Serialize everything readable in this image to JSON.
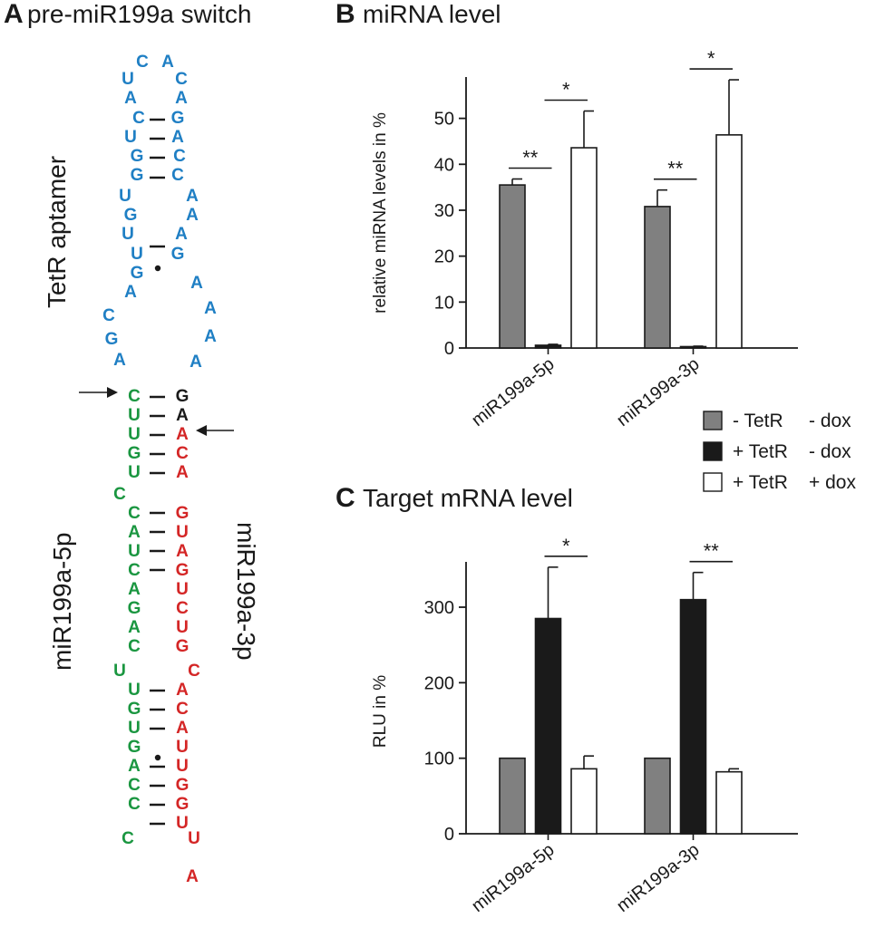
{
  "panel_a": {
    "letter": "A",
    "title": "pre-miR199a switch",
    "label_aptamer": "TetR aptamer",
    "label_5p": "miR199a-5p",
    "label_3p": "miR199a-3p",
    "colors": {
      "aptamer": "#1f7fc4",
      "strand_5p": "#1a9640",
      "strand_3p": "#d42626",
      "junction": "#1a1a1a"
    },
    "nucleotides": [
      {
        "c": "C",
        "col": "aptamer"
      },
      {
        "c": "A",
        "col": "aptamer"
      },
      {
        "c": "U",
        "col": "aptamer"
      },
      {
        "c": "C",
        "col": "aptamer"
      },
      {
        "c": "A",
        "col": "aptamer"
      },
      {
        "c": "A",
        "col": "aptamer"
      },
      {
        "c": "C",
        "col": "aptamer"
      },
      {
        "c": "G",
        "col": "aptamer"
      },
      {
        "c": "U",
        "col": "aptamer"
      },
      {
        "c": "A",
        "col": "aptamer"
      },
      {
        "c": "G",
        "col": "aptamer"
      },
      {
        "c": "C",
        "col": "aptamer"
      },
      {
        "c": "G",
        "col": "aptamer"
      },
      {
        "c": "C",
        "col": "aptamer"
      },
      {
        "c": "U",
        "col": "aptamer"
      },
      {
        "c": "A",
        "col": "aptamer"
      },
      {
        "c": "G",
        "col": "aptamer"
      },
      {
        "c": "A",
        "col": "aptamer"
      },
      {
        "c": "U",
        "col": "aptamer"
      },
      {
        "c": "A",
        "col": "aptamer"
      },
      {
        "c": "U",
        "col": "aptamer"
      },
      {
        "c": "G",
        "col": "aptamer"
      },
      {
        "c": "G",
        "col": "aptamer"
      },
      {
        "c": "A",
        "col": "aptamer"
      },
      {
        "c": "A",
        "col": "aptamer"
      },
      {
        "c": "A",
        "col": "aptamer"
      },
      {
        "c": "C",
        "col": "aptamer"
      },
      {
        "c": "A",
        "col": "aptamer"
      },
      {
        "c": "G",
        "col": "aptamer"
      },
      {
        "c": "A",
        "col": "aptamer"
      },
      {
        "c": "A",
        "col": "aptamer"
      },
      {
        "c": "C",
        "col": "strand_5p"
      },
      {
        "c": "G",
        "col": "junction"
      },
      {
        "c": "U",
        "col": "strand_5p"
      },
      {
        "c": "A",
        "col": "junction"
      },
      {
        "c": "U",
        "col": "strand_5p"
      },
      {
        "c": "A",
        "col": "strand_3p"
      },
      {
        "c": "G",
        "col": "strand_5p"
      },
      {
        "c": "C",
        "col": "strand_3p"
      },
      {
        "c": "U",
        "col": "strand_5p"
      },
      {
        "c": "A",
        "col": "strand_3p"
      },
      {
        "c": "C",
        "col": "strand_5p"
      },
      {
        "c": "C",
        "col": "strand_5p"
      },
      {
        "c": "G",
        "col": "strand_3p"
      },
      {
        "c": "A",
        "col": "strand_5p"
      },
      {
        "c": "U",
        "col": "strand_3p"
      },
      {
        "c": "U",
        "col": "strand_5p"
      },
      {
        "c": "A",
        "col": "strand_3p"
      },
      {
        "c": "C",
        "col": "strand_5p"
      },
      {
        "c": "G",
        "col": "strand_3p"
      },
      {
        "c": "A",
        "col": "strand_5p"
      },
      {
        "c": "U",
        "col": "strand_3p"
      },
      {
        "c": "G",
        "col": "strand_5p"
      },
      {
        "c": "C",
        "col": "strand_3p"
      },
      {
        "c": "A",
        "col": "strand_5p"
      },
      {
        "c": "U",
        "col": "strand_3p"
      },
      {
        "c": "C",
        "col": "strand_5p"
      },
      {
        "c": "G",
        "col": "strand_3p"
      },
      {
        "c": "U",
        "col": "strand_5p"
      },
      {
        "c": "C",
        "col": "strand_3p"
      },
      {
        "c": "U",
        "col": "strand_5p"
      },
      {
        "c": "A",
        "col": "strand_3p"
      },
      {
        "c": "G",
        "col": "strand_5p"
      },
      {
        "c": "C",
        "col": "strand_3p"
      },
      {
        "c": "U",
        "col": "strand_5p"
      },
      {
        "c": "A",
        "col": "strand_3p"
      },
      {
        "c": "G",
        "col": "strand_5p"
      },
      {
        "c": "U",
        "col": "strand_3p"
      },
      {
        "c": "A",
        "col": "strand_5p"
      },
      {
        "c": "U",
        "col": "strand_3p"
      },
      {
        "c": "C",
        "col": "strand_5p"
      },
      {
        "c": "G",
        "col": "strand_3p"
      },
      {
        "c": "C",
        "col": "strand_5p"
      },
      {
        "c": "G",
        "col": "strand_3p"
      },
      {
        "c": "C",
        "col": "strand_5p"
      },
      {
        "c": "U",
        "col": "strand_3p"
      },
      {
        "c": "U",
        "col": "strand_3p"
      },
      {
        "c": "A",
        "col": "strand_3p"
      }
    ]
  },
  "panel_b": {
    "letter": "B",
    "title": "miRNA level"
  },
  "panel_c": {
    "letter": "C",
    "title": "Target mRNA level"
  },
  "legend": {
    "items": [
      {
        "tetr": "- TetR",
        "dox": "- dox",
        "color": "#808080"
      },
      {
        "tetr": "+ TetR",
        "dox": "- dox",
        "color": "#1a1a1a"
      },
      {
        "tetr": "+ TetR",
        "dox": "+ dox",
        "color": "#ffffff"
      }
    ]
  },
  "chart_data": [
    {
      "type": "bar",
      "title": "miRNA level",
      "ylabel": "relative miRNA levels in %",
      "xlabel": "",
      "categories": [
        "miR199a-5p",
        "miR199a-3p"
      ],
      "ylim": [
        0,
        59
      ],
      "yticks": [
        0,
        10,
        20,
        30,
        40,
        50
      ],
      "series": [
        {
          "name": "- TetR - dox",
          "color": "#808080",
          "values": [
            35.5,
            30.8
          ],
          "errors": [
            1.3,
            3.6
          ]
        },
        {
          "name": "+ TetR - dox",
          "color": "#1a1a1a",
          "values": [
            0.6,
            0.3
          ],
          "errors": [
            0.2,
            0.1
          ]
        },
        {
          "name": "+ TetR + dox",
          "color": "#ffffff",
          "values": [
            43.6,
            46.4
          ],
          "errors": [
            8.0,
            12.0
          ]
        }
      ],
      "significance": [
        {
          "category": 0,
          "from": 0,
          "to": 1,
          "label": "**"
        },
        {
          "category": 0,
          "from": 1,
          "to": 2,
          "label": "*"
        },
        {
          "category": 1,
          "from": 0,
          "to": 1,
          "label": "**"
        },
        {
          "category": 1,
          "from": 1,
          "to": 2,
          "label": "*"
        }
      ],
      "grid": false,
      "legend": "bottom-right"
    },
    {
      "type": "bar",
      "title": "Target mRNA level",
      "ylabel": "RLU in %",
      "xlabel": "",
      "categories": [
        "miR199a-5p",
        "miR199a-3p"
      ],
      "ylim": [
        0,
        360
      ],
      "yticks": [
        0,
        100,
        200,
        300
      ],
      "series": [
        {
          "name": "- TetR - dox",
          "color": "#808080",
          "values": [
            100,
            100
          ],
          "errors": [
            0,
            0
          ]
        },
        {
          "name": "+ TetR - dox",
          "color": "#1a1a1a",
          "values": [
            285,
            310
          ],
          "errors": [
            68,
            36
          ]
        },
        {
          "name": "+ TetR + dox",
          "color": "#ffffff",
          "values": [
            86,
            82
          ],
          "errors": [
            17,
            4
          ]
        }
      ],
      "significance": [
        {
          "category": 0,
          "from": 1,
          "to": 2,
          "label": "*"
        },
        {
          "category": 1,
          "from": 1,
          "to": 2,
          "label": "**"
        }
      ],
      "grid": false,
      "legend": "none"
    }
  ]
}
